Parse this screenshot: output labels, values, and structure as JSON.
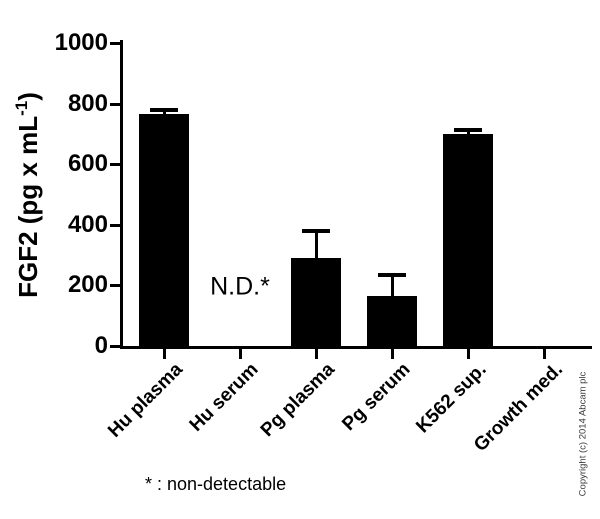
{
  "chart_data": {
    "type": "bar",
    "title": "",
    "xlabel": "",
    "ylabel": "FGF2 (pg x mL⁻¹)",
    "categories": [
      "Hu plasma",
      "Hu serum",
      "Pg plasma",
      "Pg serum",
      "K562 sup.",
      "Growth med."
    ],
    "values": [
      765,
      0,
      290,
      165,
      700,
      0
    ],
    "errors_upper": [
      15,
      0,
      90,
      70,
      12,
      0
    ],
    "ylim": [
      0,
      1000
    ],
    "yticks": [
      0,
      200,
      400,
      600,
      800,
      1000
    ],
    "bar_color": "#000000",
    "grid": false,
    "legend": false,
    "annotations": [
      {
        "text": "N.D.*",
        "category_index": 1,
        "y": 195
      }
    ]
  },
  "labels": {
    "ylabel_main": "FGF2 (pg x mL",
    "ylabel_sup": "-1",
    "ylabel_close": ")"
  },
  "footnote": {
    "text": "* : non-detectable"
  },
  "copyright": {
    "text": "Copyright (c) 2014 Abcam plc"
  }
}
